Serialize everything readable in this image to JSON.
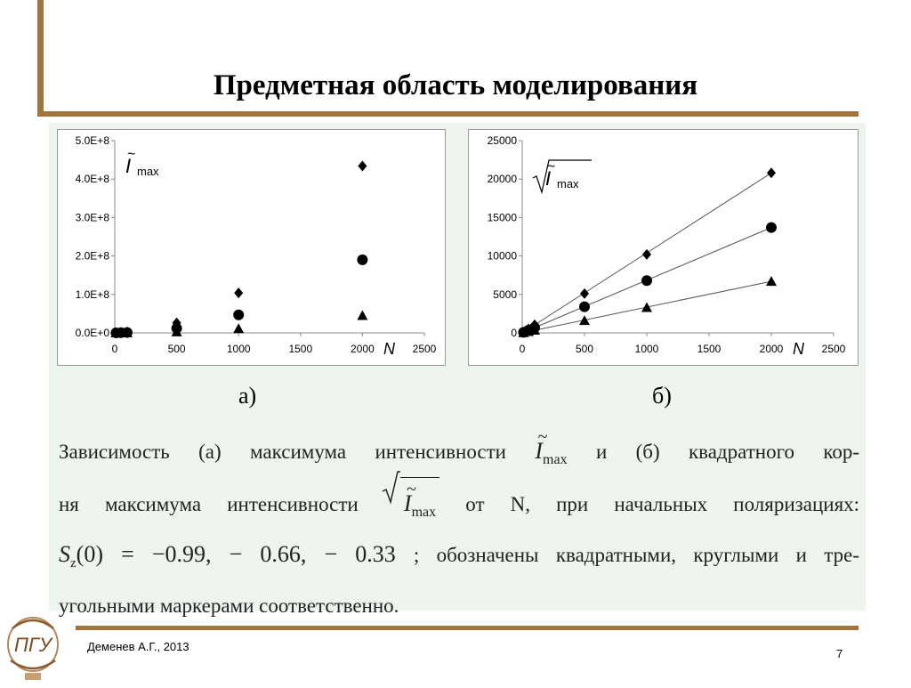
{
  "slide": {
    "title": "Предметная область моделирования",
    "author": "Деменев А.Г., 2013",
    "page_number": "7",
    "logo_text": "ПГУ"
  },
  "labels": {
    "sub_a": "а)",
    "sub_b": "б)"
  },
  "caption": {
    "line1_pre": "Зависимость (а) максимума интенсивности",
    "line1_post": "и (б) квадратного кор-",
    "line2_pre": "ня максимума интенсивности",
    "line2_post": "от N, при начальных поляризациях:",
    "line3_formula": "S",
    "line3_sub": "z",
    "line3_args": "(0) = −0.99,  − 0.66,  − 0.33",
    "line3_post": "; обозначены квадратными, круглыми и тре-",
    "line4": "угольными маркерами соответственно.",
    "symbol_I": "I",
    "symbol_tilde": "~",
    "symbol_sub": "max"
  },
  "colors": {
    "accent": "#a0743a",
    "content_bg": "#eef5ee",
    "marker": "#000000"
  },
  "chart_data": [
    {
      "type": "scatter",
      "xlabel": "N",
      "ylabel": "Ĩmax",
      "xlim": [
        0,
        2500
      ],
      "ylim": [
        0,
        500000000
      ],
      "xticks": [
        "0",
        "500",
        "1000",
        "1500",
        "2000",
        "2500"
      ],
      "yticks": [
        "0.0E+0",
        "1.0E+8",
        "2.0E+8",
        "3.0E+8",
        "4.0E+8",
        "5.0E+8"
      ],
      "grid": false,
      "series": [
        {
          "marker": "diamond",
          "x": [
            10,
            50,
            100,
            500,
            1000,
            2000
          ],
          "y": [
            200000,
            1000000,
            2600000,
            26000000,
            104000000,
            434000000
          ]
        },
        {
          "marker": "circle",
          "x": [
            10,
            50,
            100,
            500,
            1000,
            2000
          ],
          "y": [
            100000,
            500000,
            1000000,
            12000000,
            47000000,
            190000000
          ]
        },
        {
          "marker": "triangle",
          "x": [
            10,
            50,
            100,
            500,
            1000,
            2000
          ],
          "y": [
            30000,
            150000,
            400000,
            2600000,
            11000000,
            45000000
          ]
        }
      ]
    },
    {
      "type": "scatter",
      "xlabel": "N",
      "ylabel": "√Ĩmax",
      "xlim": [
        0,
        2500
      ],
      "ylim": [
        0,
        25000
      ],
      "xticks": [
        "0",
        "500",
        "1000",
        "1500",
        "2000",
        "2500"
      ],
      "yticks": [
        "0",
        "5000",
        "10000",
        "15000",
        "20000",
        "25000"
      ],
      "grid": false,
      "trendlines": true,
      "series": [
        {
          "marker": "diamond",
          "x": [
            10,
            50,
            100,
            500,
            1000,
            2000
          ],
          "y": [
            110,
            520,
            1050,
            5100,
            10200,
            20800
          ]
        },
        {
          "marker": "circle",
          "x": [
            10,
            50,
            100,
            500,
            1000,
            2000
          ],
          "y": [
            75,
            350,
            700,
            3400,
            6800,
            13700
          ]
        },
        {
          "marker": "triangle",
          "x": [
            10,
            50,
            100,
            500,
            1000,
            2000
          ],
          "y": [
            35,
            170,
            340,
            1600,
            3300,
            6700
          ]
        }
      ]
    }
  ]
}
